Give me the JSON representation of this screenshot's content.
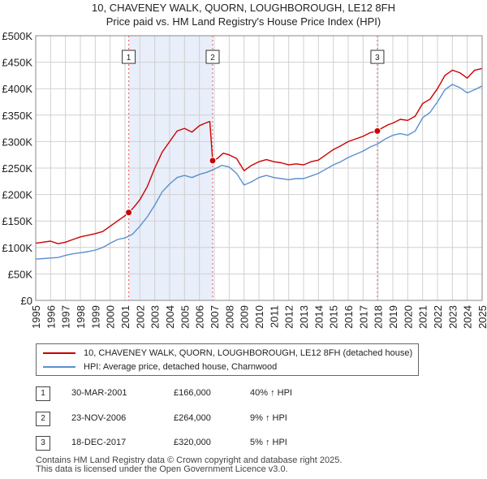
{
  "title": {
    "line1": "10, CHAVENEY WALK, QUORN, LOUGHBOROUGH, LE12 8FH",
    "line2": "Price paid vs. HM Land Registry's House Price Index (HPI)"
  },
  "colors": {
    "property": "#cc0000",
    "hpi": "#5b8fcf",
    "shade": "#e8eefa",
    "vline": "#e06060",
    "grid": "#d0d0d0"
  },
  "chart_data": {
    "type": "line",
    "xlim": [
      1995,
      2025
    ],
    "ylim": [
      0,
      500000
    ],
    "x_ticks": [
      "1995",
      "1996",
      "1997",
      "1998",
      "1999",
      "2000",
      "2001",
      "2002",
      "2003",
      "2004",
      "2005",
      "2006",
      "2007",
      "2008",
      "2009",
      "2010",
      "2011",
      "2012",
      "2013",
      "2014",
      "2015",
      "2016",
      "2017",
      "2018",
      "2019",
      "2020",
      "2021",
      "2022",
      "2023",
      "2024",
      "2025"
    ],
    "y_ticks": [
      {
        "value": 0,
        "label": "£0"
      },
      {
        "value": 50000,
        "label": "£50K"
      },
      {
        "value": 100000,
        "label": "£100K"
      },
      {
        "value": 150000,
        "label": "£150K"
      },
      {
        "value": 200000,
        "label": "£200K"
      },
      {
        "value": 250000,
        "label": "£250K"
      },
      {
        "value": 300000,
        "label": "£300K"
      },
      {
        "value": 350000,
        "label": "£350K"
      },
      {
        "value": 400000,
        "label": "£400K"
      },
      {
        "value": 450000,
        "label": "£450K"
      },
      {
        "value": 500000,
        "label": "£500K"
      }
    ],
    "shaded_ranges": [
      [
        2001.25,
        2006.9
      ]
    ],
    "series": [
      {
        "name": "10, CHAVENEY WALK, QUORN, LOUGHBOROUGH, LE12 8FH (detached house)",
        "color": "#cc0000",
        "points": [
          [
            1995,
            108000
          ],
          [
            1995.5,
            110000
          ],
          [
            1996,
            112000
          ],
          [
            1996.5,
            107000
          ],
          [
            1997,
            110000
          ],
          [
            1997.5,
            115000
          ],
          [
            1998,
            120000
          ],
          [
            1998.5,
            123000
          ],
          [
            1999,
            126000
          ],
          [
            1999.5,
            130000
          ],
          [
            2000,
            140000
          ],
          [
            2000.5,
            150000
          ],
          [
            2001,
            160000
          ],
          [
            2001.25,
            166000
          ],
          [
            2001.6,
            176000
          ],
          [
            2002,
            190000
          ],
          [
            2002.5,
            215000
          ],
          [
            2003,
            250000
          ],
          [
            2003.5,
            280000
          ],
          [
            2004,
            300000
          ],
          [
            2004.5,
            320000
          ],
          [
            2005,
            325000
          ],
          [
            2005.5,
            318000
          ],
          [
            2006,
            330000
          ],
          [
            2006.4,
            335000
          ],
          [
            2006.7,
            338000
          ],
          [
            2006.89,
            264000
          ],
          [
            2007.2,
            268000
          ],
          [
            2007.6,
            278000
          ],
          [
            2008,
            275000
          ],
          [
            2008.5,
            268000
          ],
          [
            2009,
            245000
          ],
          [
            2009.5,
            255000
          ],
          [
            2010,
            262000
          ],
          [
            2010.5,
            266000
          ],
          [
            2011,
            262000
          ],
          [
            2011.5,
            260000
          ],
          [
            2012,
            256000
          ],
          [
            2012.5,
            258000
          ],
          [
            2013,
            256000
          ],
          [
            2013.5,
            262000
          ],
          [
            2014,
            265000
          ],
          [
            2014.5,
            275000
          ],
          [
            2015,
            285000
          ],
          [
            2015.5,
            292000
          ],
          [
            2016,
            300000
          ],
          [
            2016.5,
            305000
          ],
          [
            2017,
            310000
          ],
          [
            2017.5,
            317000
          ],
          [
            2017.96,
            320000
          ],
          [
            2018.3,
            326000
          ],
          [
            2018.7,
            332000
          ],
          [
            2019,
            335000
          ],
          [
            2019.5,
            342000
          ],
          [
            2020,
            340000
          ],
          [
            2020.5,
            348000
          ],
          [
            2021,
            372000
          ],
          [
            2021.5,
            380000
          ],
          [
            2022,
            400000
          ],
          [
            2022.5,
            425000
          ],
          [
            2023,
            435000
          ],
          [
            2023.5,
            430000
          ],
          [
            2024,
            420000
          ],
          [
            2024.5,
            435000
          ],
          [
            2025,
            438000
          ]
        ]
      },
      {
        "name": "HPI: Average price, detached house, Charnwood",
        "color": "#5b8fcf",
        "points": [
          [
            1995,
            78000
          ],
          [
            1995.5,
            79000
          ],
          [
            1996,
            80000
          ],
          [
            1996.5,
            81000
          ],
          [
            1997,
            85000
          ],
          [
            1997.5,
            88000
          ],
          [
            1998,
            90000
          ],
          [
            1998.5,
            92000
          ],
          [
            1999,
            95000
          ],
          [
            1999.5,
            100000
          ],
          [
            2000,
            108000
          ],
          [
            2000.5,
            115000
          ],
          [
            2001,
            118000
          ],
          [
            2001.5,
            125000
          ],
          [
            2002,
            140000
          ],
          [
            2002.5,
            158000
          ],
          [
            2003,
            180000
          ],
          [
            2003.5,
            205000
          ],
          [
            2004,
            220000
          ],
          [
            2004.5,
            232000
          ],
          [
            2005,
            236000
          ],
          [
            2005.5,
            232000
          ],
          [
            2006,
            238000
          ],
          [
            2006.5,
            242000
          ],
          [
            2007,
            248000
          ],
          [
            2007.5,
            255000
          ],
          [
            2008,
            252000
          ],
          [
            2008.5,
            240000
          ],
          [
            2009,
            218000
          ],
          [
            2009.5,
            224000
          ],
          [
            2010,
            232000
          ],
          [
            2010.5,
            236000
          ],
          [
            2011,
            232000
          ],
          [
            2011.5,
            230000
          ],
          [
            2012,
            228000
          ],
          [
            2012.5,
            230000
          ],
          [
            2013,
            230000
          ],
          [
            2013.5,
            235000
          ],
          [
            2014,
            240000
          ],
          [
            2014.5,
            248000
          ],
          [
            2015,
            256000
          ],
          [
            2015.5,
            262000
          ],
          [
            2016,
            270000
          ],
          [
            2016.5,
            276000
          ],
          [
            2017,
            282000
          ],
          [
            2017.5,
            290000
          ],
          [
            2018,
            296000
          ],
          [
            2018.5,
            305000
          ],
          [
            2019,
            312000
          ],
          [
            2019.5,
            315000
          ],
          [
            2020,
            312000
          ],
          [
            2020.5,
            320000
          ],
          [
            2021,
            345000
          ],
          [
            2021.5,
            355000
          ],
          [
            2022,
            375000
          ],
          [
            2022.5,
            398000
          ],
          [
            2023,
            408000
          ],
          [
            2023.5,
            402000
          ],
          [
            2024,
            392000
          ],
          [
            2024.5,
            398000
          ],
          [
            2025,
            405000
          ]
        ]
      }
    ],
    "sales": [
      {
        "label": "1",
        "x": 2001.25,
        "y": 166000
      },
      {
        "label": "2",
        "x": 2006.89,
        "y": 264000
      },
      {
        "label": "3",
        "x": 2017.96,
        "y": 320000
      }
    ]
  },
  "legend": {
    "property": "10, CHAVENEY WALK, QUORN, LOUGHBOROUGH, LE12 8FH (detached house)",
    "hpi": "HPI: Average price, detached house, Charnwood"
  },
  "transactions": [
    {
      "num": "1",
      "date": "30-MAR-2001",
      "price": "£166,000",
      "hpi": "40% ↑ HPI"
    },
    {
      "num": "2",
      "date": "23-NOV-2006",
      "price": "£264,000",
      "hpi": "9% ↑ HPI"
    },
    {
      "num": "3",
      "date": "18-DEC-2017",
      "price": "£320,000",
      "hpi": "5% ↑ HPI"
    }
  ],
  "footer": {
    "line1": "Contains HM Land Registry data © Crown copyright and database right 2025.",
    "line2": "This data is licensed under the Open Government Licence v3.0."
  }
}
